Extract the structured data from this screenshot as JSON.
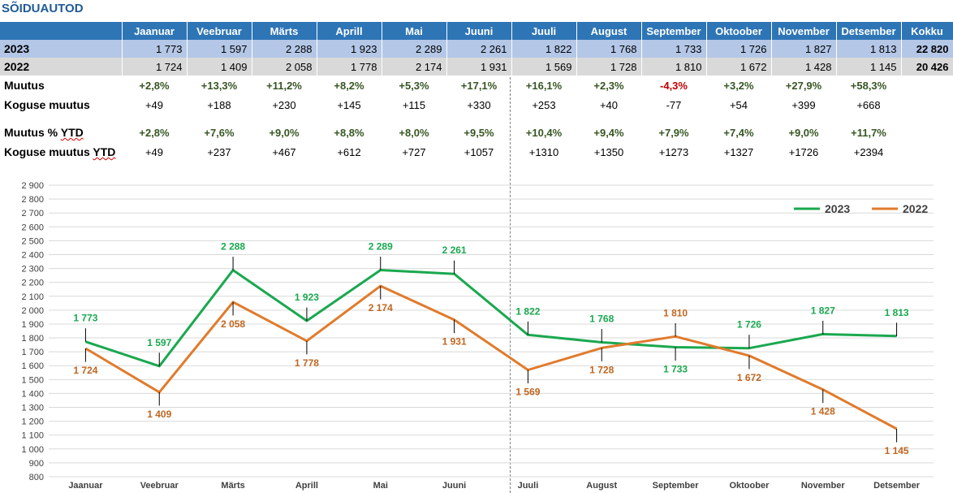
{
  "title": "SÕIDUAUTOD",
  "table": {
    "months": [
      "Jaanuar",
      "Veebruar",
      "Märts",
      "Aprill",
      "Mai",
      "Juuni",
      "Juuli",
      "August",
      "September",
      "Oktoober",
      "November",
      "Detsember"
    ],
    "total_header": "Kokku",
    "rows": [
      {
        "label": "2023",
        "values": [
          "1 773",
          "1 597",
          "2 288",
          "1 923",
          "2 289",
          "2 261",
          "1 822",
          "1 768",
          "1 733",
          "1 726",
          "1 827",
          "1 813"
        ],
        "total": "22 820"
      },
      {
        "label": "2022",
        "values": [
          "1 724",
          "1 409",
          "2 058",
          "1 778",
          "2 174",
          "1 931",
          "1 569",
          "1 728",
          "1 810",
          "1 672",
          "1 428",
          "1 145"
        ],
        "total": "20 426"
      }
    ],
    "stats": [
      {
        "label": "Muutus",
        "values": [
          "+2,8%",
          "+13,3%",
          "+11,2%",
          "+8,2%",
          "+5,3%",
          "+17,1%",
          "+16,1%",
          "+2,3%",
          "-4,3%",
          "+3,2%",
          "+27,9%",
          "+58,3%"
        ]
      },
      {
        "label": "Koguse muutus",
        "values": [
          "+49",
          "+188",
          "+230",
          "+145",
          "+115",
          "+330",
          "+253",
          "+40",
          "-77",
          "+54",
          "+399",
          "+668"
        ]
      },
      {
        "label": "Muutus % YTD",
        "values": [
          "+2,8%",
          "+7,6%",
          "+9,0%",
          "+8,8%",
          "+8,0%",
          "+9,5%",
          "+10,4%",
          "+9,4%",
          "+7,9%",
          "+7,4%",
          "+9,0%",
          "+11,7%"
        ]
      },
      {
        "label": "Koguse muutus YTD",
        "values": [
          "+49",
          "+237",
          "+467",
          "+612",
          "+727",
          "+1057",
          "+1310",
          "+1350",
          "+1273",
          "+1327",
          "+1726",
          "+2394"
        ]
      }
    ]
  },
  "chart_data": {
    "type": "line",
    "categories": [
      "Jaanuar",
      "Veebruar",
      "Märts",
      "Aprill",
      "Mai",
      "Juuni",
      "Juuli",
      "August",
      "September",
      "Oktoober",
      "November",
      "Detsember"
    ],
    "series": [
      {
        "name": "2023",
        "color": "#1aa84f",
        "values": [
          1773,
          1597,
          2288,
          1923,
          2289,
          2261,
          1822,
          1768,
          1733,
          1726,
          1827,
          1813
        ],
        "labels": [
          "1 773",
          "1 597",
          "2 288",
          "1 923",
          "2 289",
          "2 261",
          "1 822",
          "1 768",
          "1 733",
          "1 726",
          "1 827",
          "1 813"
        ]
      },
      {
        "name": "2022",
        "color": "#e07b2c",
        "values": [
          1724,
          1409,
          2058,
          1778,
          2174,
          1931,
          1569,
          1728,
          1810,
          1672,
          1428,
          1145
        ],
        "labels": [
          "1 724",
          "1 409",
          "2 058",
          "1 778",
          "2 174",
          "1 931",
          "1 569",
          "1 728",
          "1 810",
          "1 672",
          "1 428",
          "1 145"
        ]
      }
    ],
    "ylim": [
      800,
      2900
    ],
    "ytick_step": 100,
    "yticks": [
      "800",
      "900",
      "1 000",
      "1 100",
      "1 200",
      "1 300",
      "1 400",
      "1 500",
      "1 600",
      "1 700",
      "1 800",
      "1 900",
      "2 000",
      "2 100",
      "2 200",
      "2 300",
      "2 400",
      "2 500",
      "2 600",
      "2 700",
      "2 800",
      "2 900"
    ],
    "grid": true,
    "legend_position": "top-right"
  }
}
